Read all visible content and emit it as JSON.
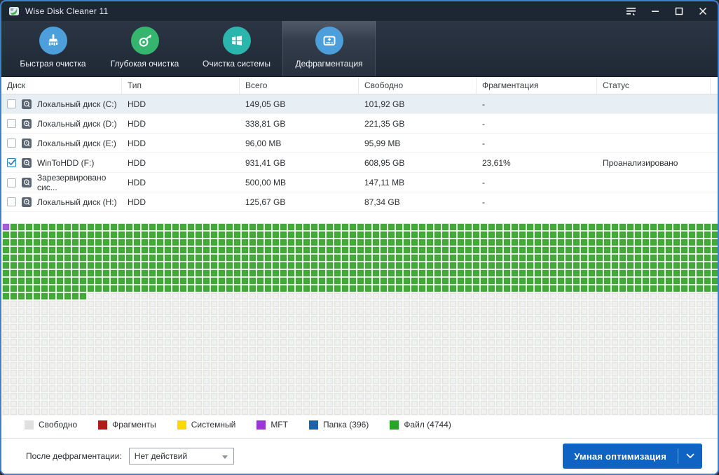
{
  "titlebar": {
    "title": "Wise Disk Cleaner 11"
  },
  "tabs": [
    {
      "id": "quick-clean",
      "label": "Быстрая очистка",
      "icon": "broom-icon",
      "color": "#4d9fdb",
      "selected": false
    },
    {
      "id": "deep-clean",
      "label": "Глубокая очистка",
      "icon": "vacuum-icon",
      "color": "#35b56d",
      "selected": false
    },
    {
      "id": "system-clean",
      "label": "Очистка системы",
      "icon": "windows-icon",
      "color": "#2cb5ad",
      "selected": false
    },
    {
      "id": "defrag",
      "label": "Дефрагментация",
      "icon": "defrag-disk-icon",
      "color": "#4d9fdb",
      "selected": true
    }
  ],
  "table": {
    "columns": [
      "Диск",
      "Тип",
      "Всего",
      "Свободно",
      "Фрагментация",
      "Статус"
    ],
    "rows": [
      {
        "name": "Локальный диск (C:)",
        "type": "HDD",
        "total": "149,05 GB",
        "free": "101,92 GB",
        "frag": "-",
        "status": "",
        "checked": false,
        "highlighted": true
      },
      {
        "name": "Локальный диск (D:)",
        "type": "HDD",
        "total": "338,81 GB",
        "free": "221,35 GB",
        "frag": "-",
        "status": "",
        "checked": false,
        "highlighted": false
      },
      {
        "name": "Локальный диск (E:)",
        "type": "HDD",
        "total": "96,00 MB",
        "free": "95,99 MB",
        "frag": "-",
        "status": "",
        "checked": false,
        "highlighted": false
      },
      {
        "name": "WinToHDD (F:)",
        "type": "HDD",
        "total": "931,41 GB",
        "free": "608,95 GB",
        "frag": "23,61%",
        "status": "Проанализировано",
        "checked": true,
        "highlighted": false
      },
      {
        "name": "Зарезервировано сис...",
        "type": "HDD",
        "total": "500,00 MB",
        "free": "147,11 MB",
        "frag": "-",
        "status": "",
        "checked": false,
        "highlighted": false
      },
      {
        "name": "Локальный диск (H:)",
        "type": "HDD",
        "total": "125,67 GB",
        "free": "87,34 GB",
        "frag": "-",
        "status": "",
        "checked": false,
        "highlighted": false
      }
    ]
  },
  "chart_data": {
    "type": "heatmap",
    "title": "Defragmentation block map of WinToHDD (F:)",
    "columns": 93,
    "rows": 25,
    "cell_pitch": 11,
    "full_file_rows": 9,
    "partial_file_cells_in_next_row": 11,
    "mft_cells": [
      [
        0,
        0
      ]
    ],
    "colors": {
      "free": "#dedede",
      "free_inner": "#f1f1f1",
      "file": "#2f8f26",
      "file_inner": "#42ac36",
      "mft": "#8a3fc4",
      "mft_inner": "#a85fdd",
      "gap": "#f7f9f5"
    }
  },
  "legend": [
    {
      "label": "Свободно",
      "color": "#e0e0e0"
    },
    {
      "label": "Фрагменты",
      "color": "#b01b17"
    },
    {
      "label": "Системный",
      "color": "#ffd800"
    },
    {
      "label": "MFT",
      "color": "#9a35d6"
    },
    {
      "label": "Папка (396)",
      "color": "#1d61a8"
    },
    {
      "label": "Файл (4744)",
      "color": "#27a327"
    }
  ],
  "footer": {
    "label": "После дефрагментации:",
    "select_value": "Нет действий",
    "button_label": "Умная оптимизация"
  }
}
